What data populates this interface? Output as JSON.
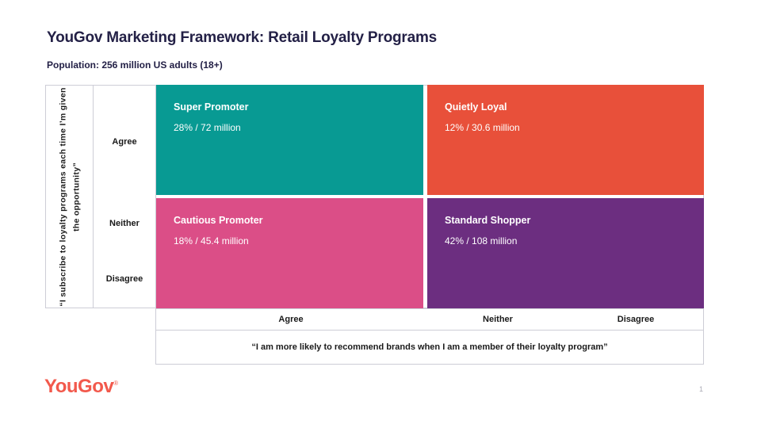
{
  "page": {
    "title": "YouGov Marketing Framework: Retail Loyalty Programs",
    "subtitle": "Population: 256 million US adults (18+)",
    "logo_text": "YouGov",
    "logo_reg": "®",
    "page_number": "1"
  },
  "chart_data": {
    "type": "matrix",
    "title": "YouGov Marketing Framework: Retail Loyalty Programs",
    "population": "256 million US adults (18+)",
    "y_axis": {
      "label": "“I subscribe to loyalty programs each time I’m given the opportunity”",
      "ticks": [
        "Agree",
        "Neither",
        "Disagree"
      ]
    },
    "x_axis": {
      "label": "“I am more likely to recommend brands when I am a member of their loyalty program”",
      "ticks": [
        "Agree",
        "Neither",
        "Disagree"
      ]
    },
    "segments": [
      {
        "name": "Super Promoter",
        "percent": 28,
        "millions": 72,
        "value": "28% / 72 million",
        "x": "Agree",
        "y": "Agree",
        "color": "#089A93"
      },
      {
        "name": "Quietly Loyal",
        "percent": 12,
        "millions": 30.6,
        "value": "12% / 30.6 million",
        "x": "Neither/Disagree",
        "y": "Agree",
        "color": "#E8503A"
      },
      {
        "name": "Cautious Promoter",
        "percent": 18,
        "millions": 45.4,
        "value": "18% / 45.4 million",
        "x": "Agree",
        "y": "Neither/Disagree",
        "color": "#DB4E87"
      },
      {
        "name": "Standard Shopper",
        "percent": 42,
        "millions": 108,
        "value": "42% / 108 million",
        "x": "Neither/Disagree",
        "y": "Neither/Disagree",
        "color": "#6C2E80"
      }
    ]
  }
}
